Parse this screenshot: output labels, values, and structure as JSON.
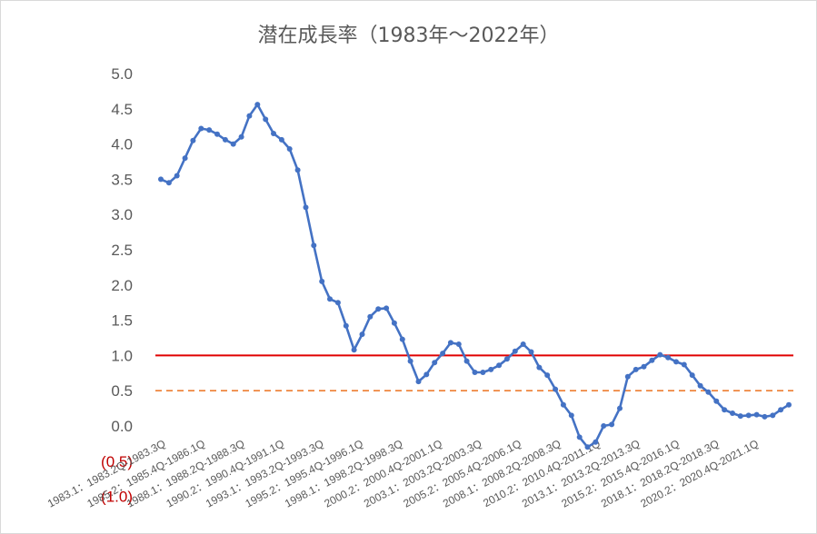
{
  "chart_data": {
    "type": "line",
    "title": "潜在成長率（1983年～2022年）",
    "xlabel": "",
    "ylabel": "",
    "ylim": [
      -1.0,
      5.0
    ],
    "y_ticks": [
      "(1.0)",
      "(0.5)",
      "0.0",
      "0.5",
      "1.0",
      "1.5",
      "2.0",
      "2.5",
      "3.0",
      "3.5",
      "4.0",
      "4.5",
      "5.0"
    ],
    "x_tick_labels": [
      "1983.1：1983.2Q-1983.3Q",
      "1985.2：1985.4Q-1986.1Q",
      "1988.1：1988.2Q-1988.3Q",
      "1990.2：1990.4Q-1991.1Q",
      "1993.1：1993.2Q-1993.3Q",
      "1995.2：1995.4Q-1996.1Q",
      "1998.1：1998.2Q-1998.3Q",
      "2000.2：2000.4Q-2001.1Q",
      "2003.1：2003.2Q-2003.3Q",
      "2005.2：2005.4Q-2006.1Q",
      "2008.1：2008.2Q-2008.3Q",
      "2010.2：2010.4Q-2011.1Q",
      "2013.1：2013.2Q-2013.3Q",
      "2015.2：2015.4Q-2016.1Q",
      "2018.1：2018.2Q-2018.3Q",
      "2020.2：2020.4Q-2021.1Q"
    ],
    "series": [
      {
        "name": "",
        "color": "#4472c4",
        "values": [
          3.5,
          3.45,
          3.55,
          3.8,
          4.05,
          4.22,
          4.2,
          4.14,
          4.06,
          4.0,
          4.1,
          4.4,
          4.56,
          4.35,
          4.15,
          4.06,
          3.93,
          3.63,
          3.1,
          2.56,
          2.05,
          1.8,
          1.75,
          1.42,
          1.08,
          1.3,
          1.55,
          1.66,
          1.67,
          1.46,
          1.23,
          0.92,
          0.63,
          0.73,
          0.9,
          1.03,
          1.18,
          1.16,
          0.92,
          0.76,
          0.76,
          0.8,
          0.86,
          0.95,
          1.06,
          1.16,
          1.05,
          0.83,
          0.72,
          0.52,
          0.3,
          0.15,
          -0.16,
          -0.3,
          -0.23,
          0.0,
          0.02,
          0.25,
          0.7,
          0.8,
          0.84,
          0.93,
          1.01,
          0.97,
          0.91,
          0.87,
          0.72,
          0.57,
          0.48,
          0.35,
          0.23,
          0.18,
          0.14,
          0.15,
          0.16,
          0.13,
          0.15,
          0.23,
          0.3
        ]
      }
    ],
    "reference_lines": [
      {
        "value": 1.0,
        "color": "#e00000",
        "style": "solid"
      },
      {
        "value": 0.5,
        "color": "#ed7d31",
        "style": "dashed"
      }
    ],
    "grid": false,
    "legend": "none"
  }
}
